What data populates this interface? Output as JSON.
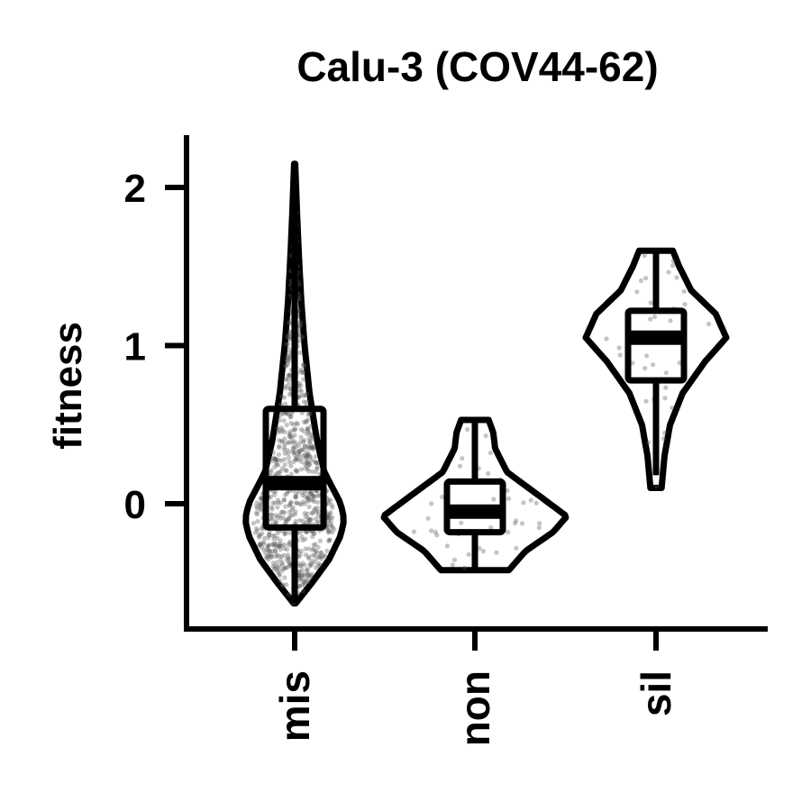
{
  "chart_data": {
    "type": "violin",
    "title": "Calu-3 (COV44-62)",
    "xlabel": "",
    "ylabel": "fitness",
    "ylim": [
      -0.8,
      2.3
    ],
    "yticks": [
      0,
      1,
      2
    ],
    "grid": false,
    "legend": "none",
    "categories": [
      "mis",
      "non",
      "sil"
    ],
    "groups": [
      {
        "category": "mis",
        "box": {
          "q1": -0.15,
          "median": 0.13,
          "q3": 0.6,
          "whisker_low": -0.63,
          "whisker_high": 2.15
        },
        "range": [
          -0.63,
          2.15
        ],
        "density": [
          [
            -0.63,
            0.02
          ],
          [
            -0.5,
            0.35
          ],
          [
            -0.35,
            0.7
          ],
          [
            -0.2,
            0.93
          ],
          [
            -0.1,
            1.0
          ],
          [
            0.0,
            0.93
          ],
          [
            0.2,
            0.6
          ],
          [
            0.4,
            0.45
          ],
          [
            0.7,
            0.3
          ],
          [
            1.0,
            0.2
          ],
          [
            1.3,
            0.13
          ],
          [
            1.6,
            0.08
          ],
          [
            1.9,
            0.04
          ],
          [
            2.15,
            0.01
          ]
        ],
        "point_count": 900
      },
      {
        "category": "non",
        "box": {
          "q1": -0.18,
          "median": -0.05,
          "q3": 0.14,
          "whisker_low": -0.42,
          "whisker_high": 0.53
        },
        "range": [
          -0.42,
          0.53
        ],
        "density": [
          [
            -0.42,
            0.37
          ],
          [
            -0.3,
            0.55
          ],
          [
            -0.18,
            0.85
          ],
          [
            -0.08,
            1.0
          ],
          [
            0.05,
            0.7
          ],
          [
            0.2,
            0.35
          ],
          [
            0.35,
            0.22
          ],
          [
            0.45,
            0.2
          ],
          [
            0.53,
            0.15
          ]
        ],
        "point_count": 45
      },
      {
        "category": "sil",
        "box": {
          "q1": 0.78,
          "median": 1.05,
          "q3": 1.22,
          "whisker_low": 0.18,
          "whisker_high": 1.6
        },
        "range": [
          0.1,
          1.6
        ],
        "density": [
          [
            0.1,
            0.08
          ],
          [
            0.3,
            0.12
          ],
          [
            0.5,
            0.2
          ],
          [
            0.7,
            0.38
          ],
          [
            0.9,
            0.7
          ],
          [
            1.05,
            1.0
          ],
          [
            1.2,
            0.85
          ],
          [
            1.35,
            0.5
          ],
          [
            1.5,
            0.33
          ],
          [
            1.6,
            0.24
          ]
        ],
        "point_count": 40
      }
    ]
  }
}
